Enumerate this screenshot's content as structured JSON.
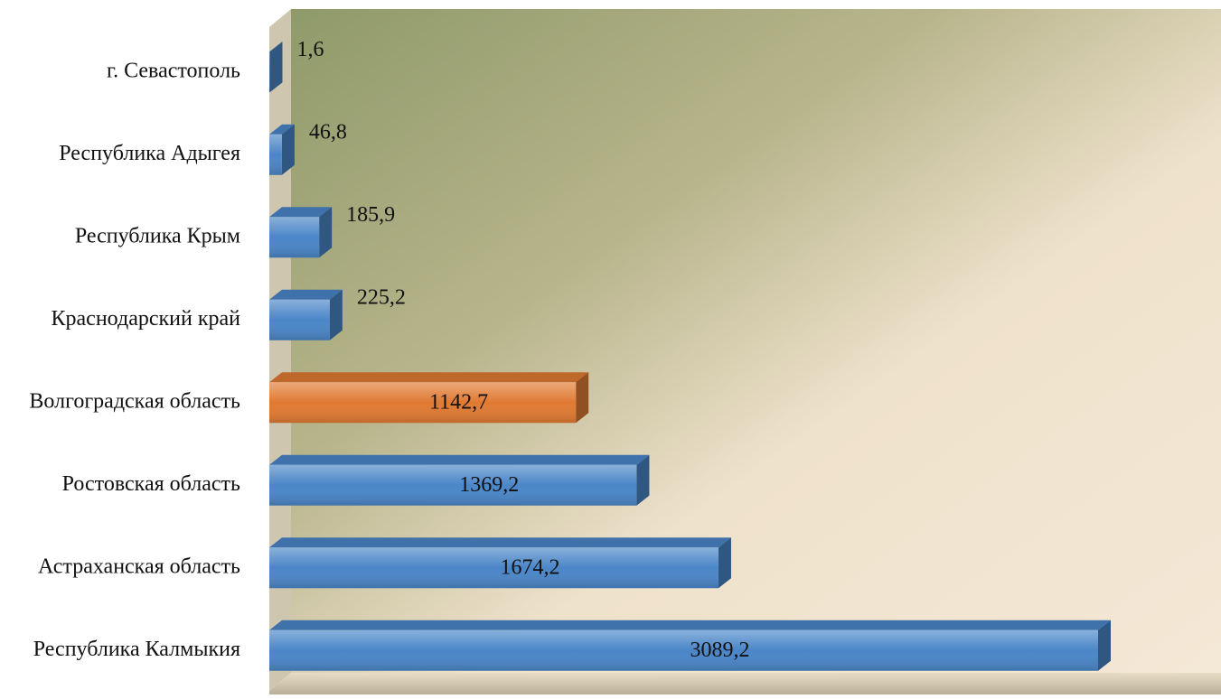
{
  "chart_data": {
    "type": "bar3d",
    "orientation": "horizontal",
    "categories": [
      "г. Севастополь",
      "Республика Адыгея",
      "Республика Крым",
      "Краснодарский край",
      "Волгоградская область",
      "Ростовская область",
      "Астраханская область",
      "Республика Калмыкия"
    ],
    "values": [
      1.6,
      46.8,
      185.9,
      225.2,
      1142.7,
      1369.2,
      1674.2,
      3089.2
    ],
    "value_labels": [
      "1,6",
      "46,8",
      "185,9",
      "225,2",
      "1142,7",
      "1369,2",
      "1674,2",
      "3089,2"
    ],
    "colors": [
      "#4a86c8",
      "#4a86c8",
      "#4a86c8",
      "#4a86c8",
      "#e07a32",
      "#4a86c8",
      "#4a86c8",
      "#4a86c8"
    ]
  }
}
